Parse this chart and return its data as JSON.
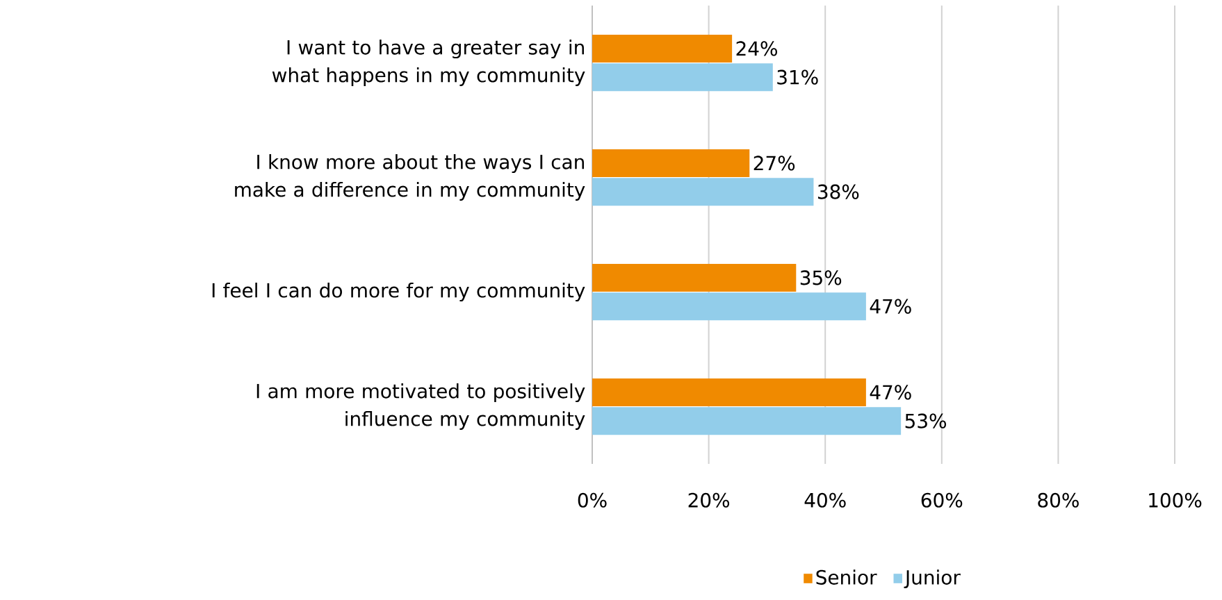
{
  "chart_data": {
    "type": "bar",
    "orientation": "horizontal",
    "categories": [
      "I want to have a greater say in what happens in my community",
      "I know more about the ways I can make a difference in my community",
      "I feel I can do more for my community",
      "I am more motivated to positively influence my community"
    ],
    "series": [
      {
        "name": "Senior",
        "color": "#f08a00",
        "values": [
          24,
          27,
          35,
          47
        ],
        "value_labels": [
          "24%",
          "27%",
          "35%",
          "47%"
        ]
      },
      {
        "name": "Junior",
        "color": "#92cdea",
        "values": [
          31,
          38,
          47,
          53
        ],
        "value_labels": [
          "31%",
          "38%",
          "47%",
          "53%"
        ]
      }
    ],
    "xlim": [
      0,
      100
    ],
    "xticks": [
      {
        "value": 0,
        "label": "0%"
      },
      {
        "value": 20,
        "label": "20%"
      },
      {
        "value": 40,
        "label": "40%"
      },
      {
        "value": 60,
        "label": "60%"
      },
      {
        "value": 80,
        "label": "80%"
      },
      {
        "value": 100,
        "label": "100%"
      }
    ],
    "grid": "x",
    "legend": "bottom"
  }
}
